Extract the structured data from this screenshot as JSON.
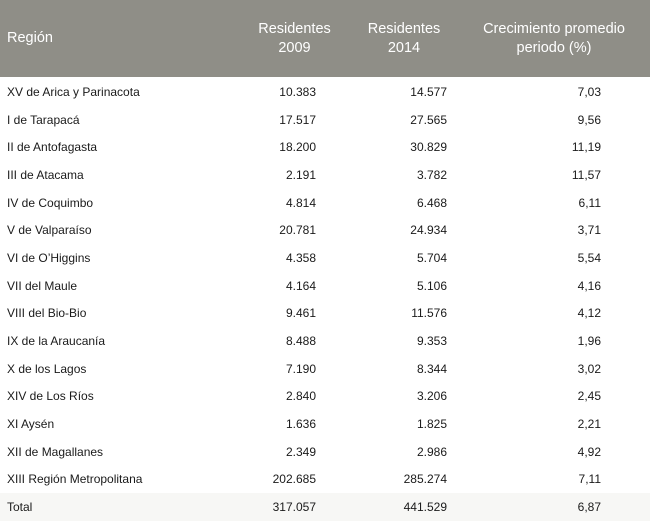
{
  "table": {
    "headers": {
      "region": "Región",
      "res2009_line1": "Residentes",
      "res2009_line2": "2009",
      "res2014_line1": "Residentes",
      "res2014_line2": "2014",
      "growth_line1": "Crecimiento promedio",
      "growth_line2": "periodo (%)"
    },
    "rows": [
      {
        "region": "XV de Arica y Parinacota",
        "res2009": "10.383",
        "res2014": "14.577",
        "growth": "7,03"
      },
      {
        "region": "I de Tarapacá",
        "res2009": "17.517",
        "res2014": "27.565",
        "growth": "9,56"
      },
      {
        "region": "II de Antofagasta",
        "res2009": "18.200",
        "res2014": "30.829",
        "growth": "11,19"
      },
      {
        "region": "III de Atacama",
        "res2009": "2.191",
        "res2014": "3.782",
        "growth": "11,57"
      },
      {
        "region": "IV de Coquimbo",
        "res2009": "4.814",
        "res2014": "6.468",
        "growth": "6,11"
      },
      {
        "region": "V de Valparaíso",
        "res2009": "20.781",
        "res2014": "24.934",
        "growth": "3,71"
      },
      {
        "region": "VI de O’Higgins",
        "res2009": "4.358",
        "res2014": "5.704",
        "growth": "5,54"
      },
      {
        "region": "VII del Maule",
        "res2009": "4.164",
        "res2014": "5.106",
        "growth": "4,16"
      },
      {
        "region": "VIII del Bio-Bio",
        "res2009": "9.461",
        "res2014": "11.576",
        "growth": "4,12"
      },
      {
        "region": "IX de la Araucanía",
        "res2009": "8.488",
        "res2014": "9.353",
        "growth": "1,96"
      },
      {
        "region": "X de los Lagos",
        "res2009": "7.190",
        "res2014": "8.344",
        "growth": "3,02"
      },
      {
        "region": "XIV de Los Ríos",
        "res2009": "2.840",
        "res2014": "3.206",
        "growth": "2,45"
      },
      {
        "region": "XI Aysén",
        "res2009": "1.636",
        "res2014": "1.825",
        "growth": "2,21"
      },
      {
        "region": "XII de Magallanes",
        "res2009": "2.349",
        "res2014": "2.986",
        "growth": "4,92"
      },
      {
        "region": "XIII Región Metropolitana",
        "res2009": "202.685",
        "res2014": "285.274",
        "growth": "7,11"
      }
    ],
    "total": {
      "region": "Total",
      "res2009": "317.057",
      "res2014": "441.529",
      "growth": "6,87"
    }
  },
  "colors": {
    "header_bg": "#8f8e87",
    "header_text": "#ffffff",
    "total_bg": "#f7f7f5"
  }
}
